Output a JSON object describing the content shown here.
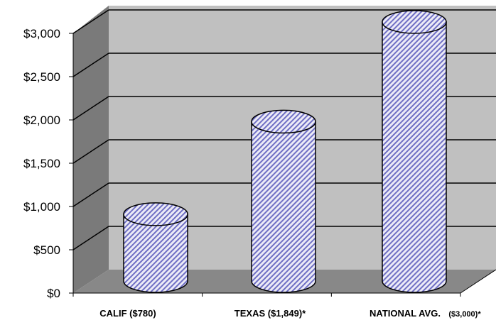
{
  "chart_data": {
    "type": "bar",
    "style": "3d-cylinder",
    "categories": [
      "CALIF ($780)",
      "TEXAS ($1,849)*",
      "NATIONAL AVG."
    ],
    "category_suffixes": [
      "",
      "",
      "($3,000)*"
    ],
    "values": [
      780,
      1849,
      3000
    ],
    "yticks": [
      "$0",
      "$500",
      "$1,000",
      "$1,500",
      "$2,000",
      "$2,500",
      "$3,000"
    ],
    "ylim": [
      0,
      3000
    ],
    "grid": true,
    "legend": "none",
    "colors": {
      "wall": "#c0c0c0",
      "floor": "#888888",
      "side_wall": "#7a7a7a",
      "bar_fill": "#ecebf7",
      "bar_stripe": "#6f6fc4"
    }
  }
}
